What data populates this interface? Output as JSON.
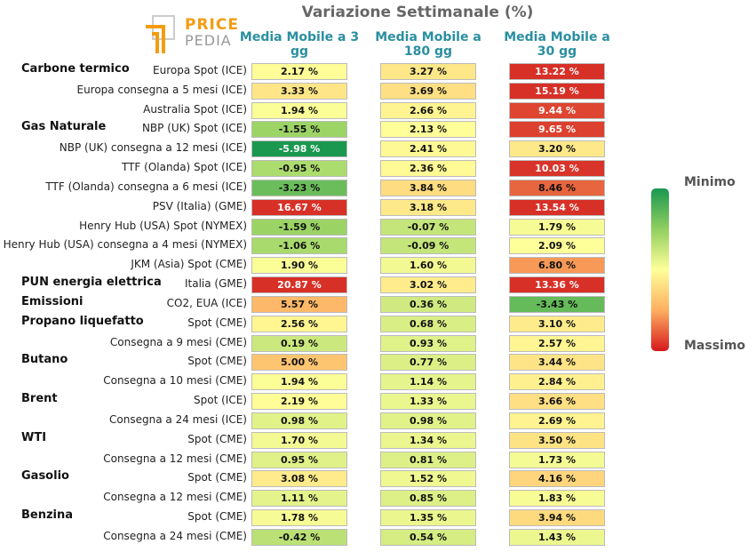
{
  "logo": [
    "PRICE",
    "PEDIA"
  ],
  "chart_data": {
    "type": "heatmap",
    "title": "Variazione Settimanale (%)",
    "groups": [
      "Carbone termico",
      null,
      null,
      "Gas Naturale",
      null,
      null,
      null,
      null,
      null,
      null,
      null,
      "PUN energia elettrica",
      "Emissioni",
      "Propano liquefatto",
      null,
      "Butano",
      null,
      "Brent",
      null,
      "WTI",
      null,
      "Gasolio",
      null,
      "Benzina",
      null
    ],
    "categories": [
      "Europa Spot (ICE)",
      "Europa consegna a 5 mesi (ICE)",
      "Australia Spot (ICE)",
      "NBP (UK) Spot (ICE)",
      "NBP (UK) consegna a 12 mesi (ICE)",
      "TTF (Olanda) Spot (ICE)",
      "TTF (Olanda) consegna a 6 mesi (ICE)",
      "PSV (Italia) (GME)",
      "Henry Hub (USA) Spot (NYMEX)",
      "Henry Hub (USA) consegna a 4 mesi (NYMEX)",
      "JKM (Asia) Spot (CME)",
      "Italia (GME)",
      "CO2, EUA (ICE)",
      "Spot (CME)",
      "Consegna a 9 mesi (CME)",
      "Spot (CME)",
      "Consegna a 10 mesi (CME)",
      "Spot (ICE)",
      "Consegna a 24 mesi (ICE)",
      "Spot (CME)",
      "Consegna a 12 mesi (CME)",
      "Spot (CME)",
      "Consegna a 12 mesi (CME)",
      "Spot (CME)",
      "Consegna a 24 mesi (CME)"
    ],
    "series": [
      {
        "name": "Media Mobile a 3 gg",
        "values": [
          2.17,
          3.33,
          1.94,
          -1.55,
          -5.98,
          -0.95,
          -3.23,
          16.67,
          -1.59,
          -1.06,
          1.9,
          20.87,
          5.57,
          2.56,
          0.19,
          5.0,
          1.94,
          2.19,
          0.98,
          1.7,
          0.95,
          3.08,
          1.11,
          1.78,
          -0.42
        ],
        "value_labels": [
          "2.17 %",
          "3.33 %",
          "1.94 %",
          "-1.55 %",
          "-5.98 %",
          "-0.95 %",
          "-3.23 %",
          "16.67 %",
          "-1.59 %",
          "-1.06 %",
          "1.90 %",
          "20.87 %",
          "5.57 %",
          "2.56 %",
          "0.19 %",
          "5.00 %",
          "1.94 %",
          "2.19 %",
          "0.98 %",
          "1.70 %",
          "0.95 %",
          "3.08 %",
          "1.11 %",
          "1.78 %",
          "-0.42 %"
        ]
      },
      {
        "name": "Media Mobile a 180 gg",
        "values": [
          3.27,
          3.69,
          2.66,
          2.13,
          2.41,
          2.36,
          3.84,
          3.18,
          -0.07,
          -0.09,
          1.6,
          3.02,
          0.36,
          0.68,
          0.93,
          0.77,
          1.14,
          1.33,
          0.98,
          1.34,
          0.81,
          1.52,
          0.85,
          1.35,
          0.54
        ],
        "value_labels": [
          "3.27 %",
          "3.69 %",
          "2.66 %",
          "2.13 %",
          "2.41 %",
          "2.36 %",
          "3.84 %",
          "3.18 %",
          "-0.07 %",
          "-0.09 %",
          "1.60 %",
          "3.02 %",
          "0.36 %",
          "0.68 %",
          "0.93 %",
          "0.77 %",
          "1.14 %",
          "1.33 %",
          "0.98 %",
          "1.34 %",
          "0.81 %",
          "1.52 %",
          "0.85 %",
          "1.35 %",
          "0.54 %"
        ]
      },
      {
        "name": "Media Mobile a 30 gg",
        "values": [
          13.22,
          15.19,
          9.44,
          9.65,
          3.2,
          10.03,
          8.46,
          13.54,
          1.79,
          2.09,
          6.8,
          13.36,
          -3.43,
          3.1,
          2.57,
          3.44,
          2.84,
          3.66,
          2.69,
          3.5,
          1.73,
          4.16,
          1.83,
          3.94,
          1.43
        ],
        "value_labels": [
          "13.22 %",
          "15.19 %",
          "9.44 %",
          "9.65 %",
          "3.20 %",
          "10.03 %",
          "8.46 %",
          "13.54 %",
          "1.79 %",
          "2.09 %",
          "6.80 %",
          "13.36 %",
          "-3.43 %",
          "3.10 %",
          "2.57 %",
          "3.44 %",
          "2.84 %",
          "3.66 %",
          "2.69 %",
          "3.50 %",
          "1.73 %",
          "4.16 %",
          "1.83 %",
          "3.94 %",
          "1.43 %"
        ]
      }
    ],
    "colorbar_labels": [
      "Minimo",
      "Massimo"
    ]
  }
}
